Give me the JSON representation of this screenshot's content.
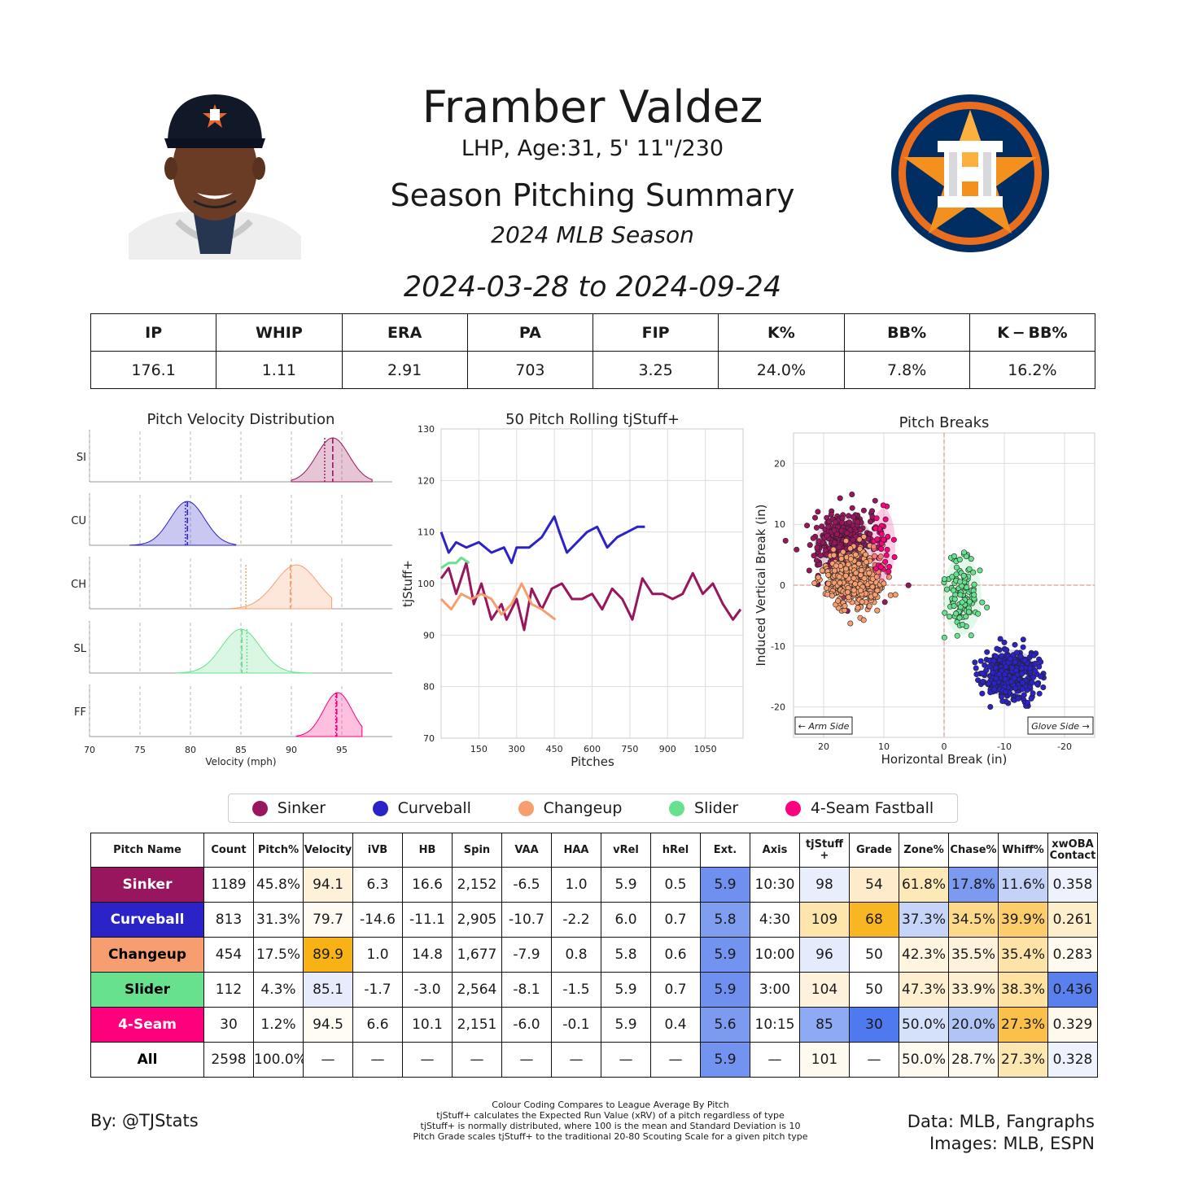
{
  "header": {
    "player_name": "Framber Valdez",
    "player_info": "LHP, Age:31, 5' 11\"/230",
    "summary_title": "Season Pitching Summary",
    "season": "2024 MLB Season",
    "date_range": "2024-03-28 to 2024-09-24"
  },
  "season_stats": {
    "headers": [
      "IP",
      "WHIP",
      "ERA",
      "PA",
      "FIP",
      "K%",
      "BB%",
      "K − BB%"
    ],
    "values": [
      "176.1",
      "1.11",
      "2.91",
      "703",
      "3.25",
      "24.0%",
      "7.8%",
      "16.2%"
    ]
  },
  "colors": {
    "Sinker": "#98165d",
    "Curveball": "#2b22c8",
    "Changeup": "#f79e70",
    "Slider": "#67e18d",
    "4-Seam Fastball": "#ff007d"
  },
  "legend": [
    "Sinker",
    "Curveball",
    "Changeup",
    "Slider",
    "4-Seam Fastball"
  ],
  "chart_data": [
    {
      "type": "area",
      "title": "Pitch Velocity Distribution",
      "xlabel": "Velocity (mph)",
      "xlim": [
        70,
        100
      ],
      "xticks": [
        70,
        75,
        80,
        85,
        90,
        95
      ],
      "series": [
        {
          "name": "SI",
          "x_range": [
            90.0,
            98.0
          ],
          "peak": 94.1,
          "spread": 1.6,
          "mean": 94.1,
          "league_mean": 93.3
        },
        {
          "name": "CU",
          "x_range": [
            74.0,
            84.5
          ],
          "peak": 79.7,
          "spread": 1.7,
          "mean": 79.7,
          "league_mean": 79.5
        },
        {
          "name": "CH",
          "x_range": [
            84.0,
            94.0
          ],
          "peak": 90.5,
          "spread": 2.1,
          "mean": 89.9,
          "league_mean": 85.5
        },
        {
          "name": "SL",
          "x_range": [
            78.5,
            92.0
          ],
          "peak": 85.0,
          "spread": 1.9,
          "mean": 85.1,
          "league_mean": 85.6
        },
        {
          "name": "FF",
          "x_range": [
            90.5,
            97.0
          ],
          "peak": 94.6,
          "spread": 1.4,
          "mean": 94.5,
          "league_mean": 94.4
        }
      ]
    },
    {
      "type": "line",
      "title": "50 Pitch Rolling tjStuff+",
      "xlabel": "Pitches",
      "ylabel": "tjStuff+",
      "xlim": [
        0,
        1200
      ],
      "ylim": [
        70,
        130
      ],
      "xticks": [
        150,
        300,
        450,
        600,
        750,
        900,
        1050
      ],
      "yticks": [
        70,
        80,
        90,
        100,
        110,
        120,
        130
      ],
      "series": [
        {
          "name": "Sinker",
          "x": [
            0,
            30,
            60,
            100,
            130,
            160,
            200,
            240,
            260,
            300,
            330,
            360,
            400,
            440,
            480,
            520,
            560,
            600,
            640,
            680,
            720,
            760,
            800,
            840,
            880,
            920,
            960,
            1000,
            1040,
            1080,
            1120,
            1160,
            1190
          ],
          "y": [
            101,
            103,
            98,
            104,
            96,
            100,
            93,
            96,
            93,
            97,
            91,
            99,
            95,
            99,
            100,
            97,
            97,
            98,
            95,
            99,
            97,
            93,
            101,
            98,
            98,
            97,
            98,
            102,
            98,
            100,
            96,
            93,
            95
          ]
        },
        {
          "name": "Curveball",
          "x": [
            0,
            30,
            60,
            100,
            150,
            200,
            250,
            280,
            300,
            350,
            400,
            450,
            470,
            500,
            540,
            580,
            620,
            660,
            700,
            740,
            780,
            810
          ],
          "y": [
            110,
            106,
            108,
            107,
            108,
            106,
            107,
            104,
            107,
            107,
            109,
            113,
            110,
            106,
            108,
            110,
            111,
            107,
            109,
            110,
            111,
            111
          ]
        },
        {
          "name": "Changeup",
          "x": [
            0,
            40,
            80,
            120,
            160,
            200,
            240,
            280,
            320,
            360,
            400,
            454
          ],
          "y": [
            97,
            95,
            98,
            97,
            98,
            97,
            94,
            96,
            100,
            96,
            95,
            93
          ]
        },
        {
          "name": "Slider",
          "x": [
            0,
            30,
            60,
            80,
            112
          ],
          "y": [
            103,
            104,
            104,
            105,
            104
          ]
        }
      ]
    },
    {
      "type": "scatter",
      "title": "Pitch Breaks",
      "xlabel": "Horizontal Break (in)",
      "ylabel": "Induced Vertical Break (in)",
      "xlim": [
        25,
        -25
      ],
      "ylim": [
        -25,
        25
      ],
      "xticks": [
        20,
        10,
        0,
        -10,
        -20
      ],
      "yticks": [
        20,
        10,
        0,
        -10,
        -20
      ],
      "annotations": [
        "← Arm Side",
        "Glove Side →"
      ],
      "series": [
        {
          "name": "Sinker",
          "center": [
            16.6,
            6.3
          ],
          "sd": [
            2.5,
            2.6
          ],
          "n": 1189
        },
        {
          "name": "Curveball",
          "center": [
            -11.1,
            -14.6
          ],
          "sd": [
            2.2,
            2.0
          ],
          "n": 813
        },
        {
          "name": "Changeup",
          "center": [
            14.8,
            1.0
          ],
          "sd": [
            2.3,
            2.3
          ],
          "n": 454
        },
        {
          "name": "Slider",
          "center": [
            -3.0,
            -1.7
          ],
          "sd": [
            1.6,
            3.2
          ],
          "n": 112
        },
        {
          "name": "4-Seam Fastball",
          "center": [
            10.1,
            6.6
          ],
          "sd": [
            1.0,
            3.0
          ],
          "n": 30
        }
      ]
    }
  ],
  "pitch_table": {
    "headers": [
      "Pitch Name",
      "Count",
      "Pitch%",
      "Velocity",
      "iVB",
      "HB",
      "Spin",
      "VAA",
      "HAA",
      "vRel",
      "hRel",
      "Ext.",
      "Axis",
      "tjStuff +",
      "Grade",
      "Zone%",
      "Chase%",
      "Whiff%",
      "xwOBA Contact"
    ],
    "rows": [
      {
        "name": "Sinker",
        "color": "#98165d",
        "text_color": "#ffffff",
        "cells": [
          "1189",
          "45.8%",
          "94.1",
          "6.3",
          "16.6",
          "2,152",
          "-6.5",
          "1.0",
          "5.9",
          "0.5",
          "5.9",
          "10:30",
          "98",
          "54",
          "61.8%",
          "17.8%",
          "11.6%",
          "0.358"
        ],
        "bg": [
          "",
          "",
          "#fdf1da",
          "",
          "",
          "",
          "",
          "",
          "",
          "",
          "#7090f0",
          "",
          "#e8eefc",
          "#fdebcc",
          "#fde9b8",
          "#7b9af0",
          "#c4d2f8",
          "#eef2fc"
        ]
      },
      {
        "name": "Curveball",
        "color": "#2b22c8",
        "text_color": "#ffffff",
        "cells": [
          "813",
          "31.3%",
          "79.7",
          "-14.6",
          "-11.1",
          "2,905",
          "-10.7",
          "-2.2",
          "6.0",
          "0.7",
          "5.8",
          "4:30",
          "109",
          "68",
          "37.3%",
          "34.5%",
          "39.9%",
          "0.261"
        ],
        "bg": [
          "",
          "",
          "#fffaf2",
          "",
          "",
          "",
          "",
          "",
          "",
          "",
          "#7f9ef0",
          "",
          "#fde5ab",
          "#f9b623",
          "#c6d4f8",
          "#fdd98a",
          "#fccd6a",
          "#fdefcc"
        ]
      },
      {
        "name": "Changeup",
        "color": "#f79e70",
        "text_color": "#000000",
        "cells": [
          "454",
          "17.5%",
          "89.9",
          "1.0",
          "14.8",
          "1,677",
          "-7.9",
          "0.8",
          "5.8",
          "0.6",
          "5.9",
          "10:00",
          "96",
          "50",
          "42.3%",
          "35.5%",
          "35.4%",
          "0.283"
        ],
        "bg": [
          "",
          "",
          "#f8b215",
          "",
          "",
          "",
          "",
          "",
          "",
          "",
          "#7393f0",
          "",
          "#e3ebfc",
          "",
          "#fef4e0",
          "#fef2dc",
          "#fde3a8",
          "#fffaf0"
        ]
      },
      {
        "name": "Slider",
        "color": "#67e18d",
        "text_color": "#000000",
        "cells": [
          "112",
          "4.3%",
          "85.1",
          "-1.7",
          "-3.0",
          "2,564",
          "-8.1",
          "-1.5",
          "5.9",
          "0.7",
          "5.9",
          "3:00",
          "104",
          "50",
          "47.3%",
          "33.9%",
          "38.3%",
          "0.436"
        ],
        "bg": [
          "",
          "",
          "#e6ecfb",
          "",
          "",
          "",
          "",
          "",
          "",
          "",
          "#7090f0",
          "",
          "#fef2dc",
          "",
          "#fdefcf",
          "#fdefd1",
          "#fde2a0",
          "#5a80ee"
        ]
      },
      {
        "name": "4-Seam",
        "color": "#ff007d",
        "text_color": "#ffffff",
        "cells": [
          "30",
          "1.2%",
          "94.5",
          "6.6",
          "10.1",
          "2,151",
          "-6.0",
          "-0.1",
          "5.9",
          "0.4",
          "5.6",
          "10:15",
          "85",
          "30",
          "50.0%",
          "20.0%",
          "27.3%",
          "0.329"
        ],
        "bg": [
          "",
          "",
          "#fffcf4",
          "",
          "",
          "",
          "",
          "",
          "",
          "",
          "#7b9af0",
          "",
          "#8eaaf4",
          "#4f79ee",
          "#d5e0fa",
          "#b0c4f6",
          "#fbc04a",
          "#fff8ec"
        ]
      },
      {
        "name": "All",
        "color": "#ffffff",
        "text_color": "#000000",
        "cells": [
          "2598",
          "100.0%",
          "—",
          "—",
          "—",
          "—",
          "—",
          "—",
          "—",
          "—",
          "5.9",
          "—",
          "101",
          "—",
          "50.0%",
          "28.7%",
          "27.3%",
          "0.328"
        ],
        "bg": [
          "",
          "",
          "",
          "",
          "",
          "",
          "",
          "",
          "",
          "",
          "#7393f0",
          "",
          "#fffaf0",
          "",
          "#fffaf0",
          "#fffaf0",
          "#fde7b0",
          "#eef2fc"
        ]
      }
    ]
  },
  "footer": {
    "credit": "By: @TJStats",
    "notes": [
      "Colour Coding Compares to League Average By Pitch",
      "tjStuff+ calculates the Expected Run Value (xRV) of a pitch regardless of type",
      "tjStuff+ is normally distributed, where 100 is the mean and Standard Deviation is 10",
      "Pitch Grade scales tjStuff+ to the traditional 20-80 Scouting Scale for a given pitch type"
    ],
    "data_source": "Data: MLB, Fangraphs",
    "images_source": "Images: MLB, ESPN"
  }
}
